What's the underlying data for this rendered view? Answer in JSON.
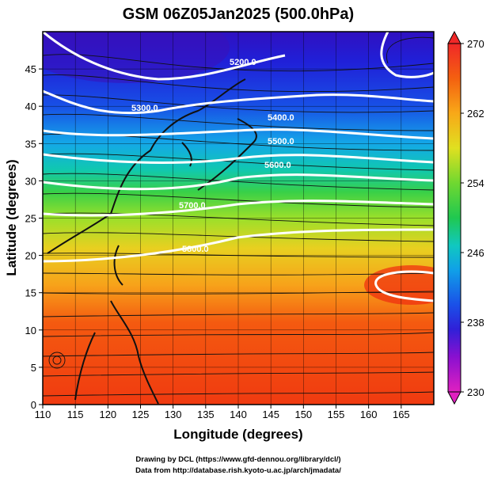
{
  "chart_data": {
    "type": "heatmap",
    "title": "GSM 06Z05Jan2025 (500.0hPa)",
    "xlabel": "Longitude (degrees)",
    "ylabel": "Latitude (degrees)",
    "xlim": [
      110,
      170
    ],
    "ylim": [
      0,
      50
    ],
    "x_ticks": [
      "110",
      "115",
      "120",
      "125",
      "130",
      "135",
      "140",
      "145",
      "150",
      "155",
      "160",
      "165"
    ],
    "y_ticks": [
      "0",
      "5",
      "10",
      "15",
      "20",
      "25",
      "30",
      "35",
      "40",
      "45"
    ],
    "grid": true,
    "colorbar": {
      "min": 230,
      "max": 270,
      "ticks": [
        "230",
        "238",
        "246",
        "254",
        "262",
        "270"
      ],
      "placement": "right"
    },
    "contour_labels": [
      "5200.0",
      "5300.0",
      "5400.0",
      "5500.0",
      "5600.0",
      "5700.0",
      "5800.0"
    ],
    "overlays": [
      "wind streamlines",
      "coastlines"
    ]
  },
  "footer": {
    "line1": "Drawing by DCL (https://www.gfd-dennou.org/library/dcl/)",
    "line2": "Data from http://database.rish.kyoto-u.ac.jp/arch/jmadata/"
  }
}
